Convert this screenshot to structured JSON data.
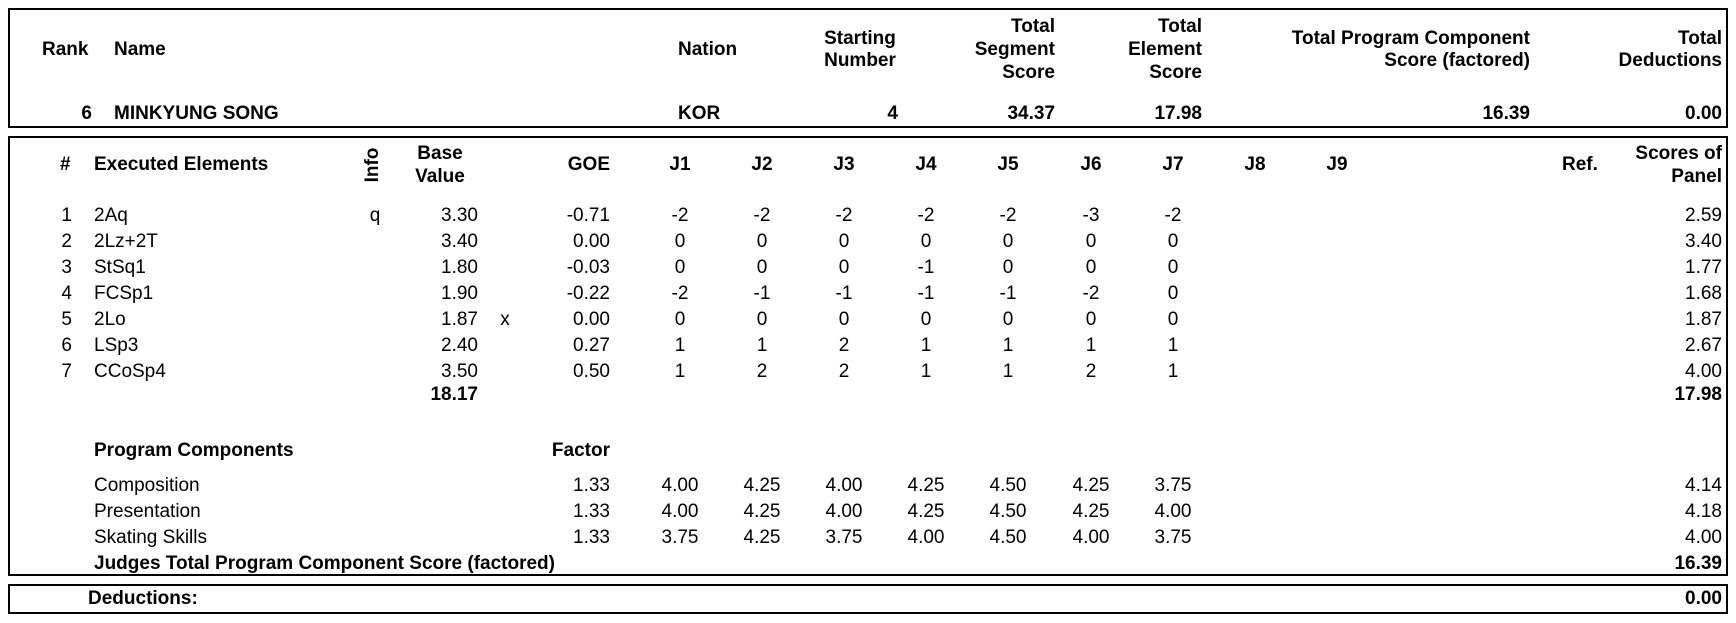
{
  "header": {
    "rank_label": "Rank",
    "name_label": "Name",
    "nation_label": "Nation",
    "starting_number_label": [
      "Starting",
      "Number"
    ],
    "tss_label": [
      "Total",
      "Segment",
      "Score"
    ],
    "tes_label": [
      "Total",
      "Element",
      "Score"
    ],
    "pcs_label": [
      "Total Program Component",
      "Score (factored)"
    ],
    "ded_label": [
      "Total",
      "Deductions"
    ]
  },
  "skater": {
    "rank": "6",
    "name": "MINKYUNG SONG",
    "nation": "KOR",
    "starting_number": "4",
    "total_segment_score": "34.37",
    "total_element_score": "17.98",
    "total_pcs": "16.39",
    "total_deductions": "0.00"
  },
  "elements_header": {
    "num": "#",
    "executed": "Executed Elements",
    "info": "Info",
    "base_value": [
      "Base",
      "Value"
    ],
    "goe": "GOE",
    "judges": [
      "J1",
      "J2",
      "J3",
      "J4",
      "J5",
      "J6",
      "J7",
      "J8",
      "J9"
    ],
    "ref": "Ref.",
    "scores_of_panel": [
      "Scores of",
      "Panel"
    ]
  },
  "elements": [
    {
      "num": "1",
      "name": "2Aq",
      "info": "q",
      "base": "3.30",
      "x": "",
      "goe": "-0.71",
      "j": [
        "-2",
        "-2",
        "-2",
        "-2",
        "-2",
        "-3",
        "-2"
      ],
      "score": "2.59"
    },
    {
      "num": "2",
      "name": "2Lz+2T",
      "info": "",
      "base": "3.40",
      "x": "",
      "goe": "0.00",
      "j": [
        "0",
        "0",
        "0",
        "0",
        "0",
        "0",
        "0"
      ],
      "score": "3.40"
    },
    {
      "num": "3",
      "name": "StSq1",
      "info": "",
      "base": "1.80",
      "x": "",
      "goe": "-0.03",
      "j": [
        "0",
        "0",
        "0",
        "-1",
        "0",
        "0",
        "0"
      ],
      "score": "1.77"
    },
    {
      "num": "4",
      "name": "FCSp1",
      "info": "",
      "base": "1.90",
      "x": "",
      "goe": "-0.22",
      "j": [
        "-2",
        "-1",
        "-1",
        "-1",
        "-1",
        "-2",
        "0"
      ],
      "score": "1.68"
    },
    {
      "num": "5",
      "name": "2Lo",
      "info": "",
      "base": "1.87",
      "x": "x",
      "goe": "0.00",
      "j": [
        "0",
        "0",
        "0",
        "0",
        "0",
        "0",
        "0"
      ],
      "score": "1.87"
    },
    {
      "num": "6",
      "name": "LSp3",
      "info": "",
      "base": "2.40",
      "x": "",
      "goe": "0.27",
      "j": [
        "1",
        "1",
        "2",
        "1",
        "1",
        "1",
        "1"
      ],
      "score": "2.67"
    },
    {
      "num": "7",
      "name": "CCoSp4",
      "info": "",
      "base": "3.50",
      "x": "",
      "goe": "0.50",
      "j": [
        "1",
        "2",
        "2",
        "1",
        "1",
        "2",
        "1"
      ],
      "score": "4.00"
    }
  ],
  "elements_total": {
    "base": "18.17",
    "score": "17.98"
  },
  "program_components": {
    "title": "Program Components",
    "factor_label": "Factor",
    "rows": [
      {
        "name": "Composition",
        "factor": "1.33",
        "j": [
          "4.00",
          "4.25",
          "4.00",
          "4.25",
          "4.50",
          "4.25",
          "3.75"
        ],
        "score": "4.14"
      },
      {
        "name": "Presentation",
        "factor": "1.33",
        "j": [
          "4.00",
          "4.25",
          "4.00",
          "4.25",
          "4.50",
          "4.25",
          "4.00"
        ],
        "score": "4.18"
      },
      {
        "name": "Skating Skills",
        "factor": "1.33",
        "j": [
          "3.75",
          "4.25",
          "3.75",
          "4.00",
          "4.50",
          "4.00",
          "3.75"
        ],
        "score": "4.00"
      }
    ],
    "total_label": "Judges Total Program Component Score (factored)",
    "total": "16.39"
  },
  "deductions": {
    "label": "Deductions:",
    "value": "0.00"
  }
}
